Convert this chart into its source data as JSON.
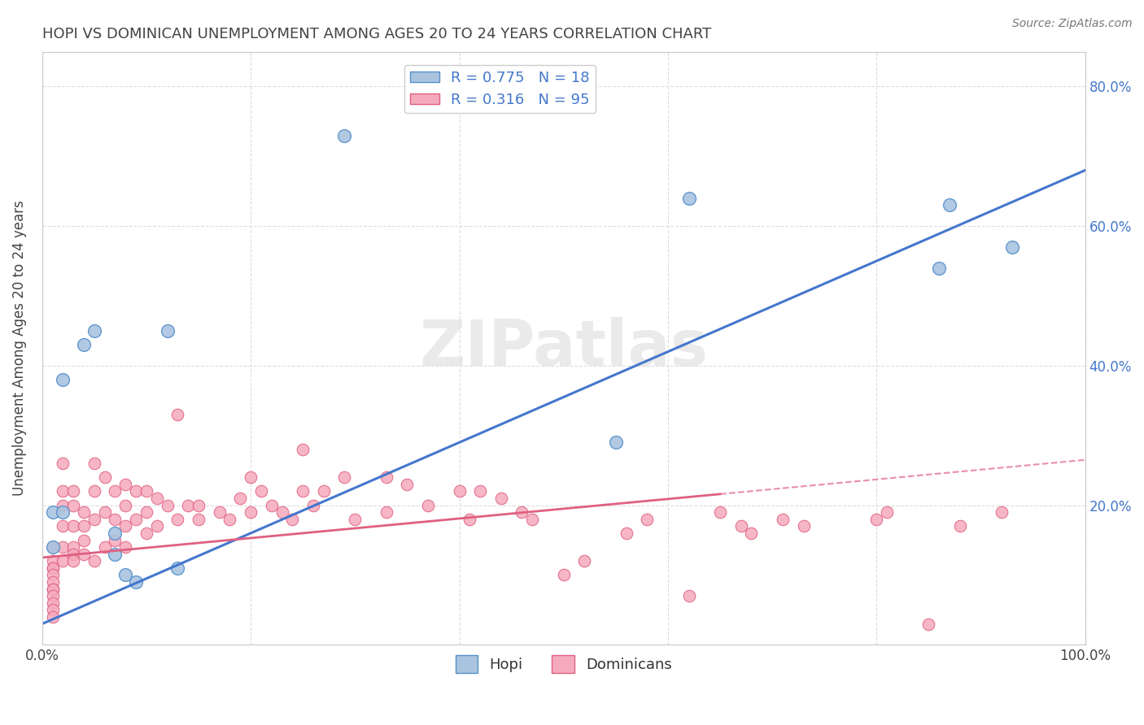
{
  "title": "HOPI VS DOMINICAN UNEMPLOYMENT AMONG AGES 20 TO 24 YEARS CORRELATION CHART",
  "source": "Source: ZipAtlas.com",
  "ylabel": "Unemployment Among Ages 20 to 24 years",
  "xlim": [
    0,
    1.0
  ],
  "ylim": [
    0,
    0.85
  ],
  "xticks": [
    0.0,
    0.2,
    0.4,
    0.6,
    0.8,
    1.0
  ],
  "xticklabels": [
    "0.0%",
    "",
    "",
    "",
    "",
    "100.0%"
  ],
  "yticks": [
    0.0,
    0.2,
    0.4,
    0.6,
    0.8
  ],
  "yticklabels": [
    "",
    "",
    "",
    "",
    ""
  ],
  "right_yticks": [
    0.0,
    0.2,
    0.4,
    0.6,
    0.8
  ],
  "right_yticklabels": [
    "",
    "20.0%",
    "40.0%",
    "60.0%",
    "80.0%"
  ],
  "hopi_color": "#aac4e0",
  "dominican_color": "#f5aabb",
  "hopi_edge_color": "#5590cc",
  "dominican_edge_color": "#e06080",
  "hopi_line_color": "#4477cc",
  "dominican_line_color": "#e06080",
  "dominican_line_solid_end": 0.65,
  "hopi_R": 0.775,
  "hopi_N": 18,
  "dominican_R": 0.316,
  "dominican_N": 95,
  "legend_label_hopi": "Hopi",
  "legend_label_dominican": "Dominicans",
  "watermark": "ZIPatlas",
  "background_color": "#ffffff",
  "grid_color": "#dddddd",
  "hopi_line_x0": 0.0,
  "hopi_line_y0": 0.03,
  "hopi_line_x1": 1.0,
  "hopi_line_y1": 0.68,
  "dominican_line_x0": 0.0,
  "dominican_line_y0": 0.125,
  "dominican_line_x1": 1.0,
  "dominican_line_y1": 0.265,
  "hopi_points_x": [
    0.01,
    0.01,
    0.02,
    0.04,
    0.05,
    0.07,
    0.07,
    0.08,
    0.09,
    0.12,
    0.13,
    0.29,
    0.55,
    0.62,
    0.86,
    0.87,
    0.93,
    0.02
  ],
  "hopi_points_y": [
    0.19,
    0.14,
    0.19,
    0.43,
    0.45,
    0.16,
    0.13,
    0.1,
    0.09,
    0.45,
    0.11,
    0.73,
    0.29,
    0.64,
    0.54,
    0.63,
    0.57,
    0.38
  ],
  "dominican_points_x": [
    0.01,
    0.01,
    0.01,
    0.01,
    0.01,
    0.01,
    0.01,
    0.01,
    0.01,
    0.01,
    0.01,
    0.01,
    0.02,
    0.02,
    0.02,
    0.02,
    0.02,
    0.02,
    0.03,
    0.03,
    0.03,
    0.03,
    0.03,
    0.03,
    0.04,
    0.04,
    0.04,
    0.04,
    0.05,
    0.05,
    0.05,
    0.05,
    0.06,
    0.06,
    0.06,
    0.07,
    0.07,
    0.07,
    0.08,
    0.08,
    0.08,
    0.08,
    0.09,
    0.09,
    0.1,
    0.1,
    0.1,
    0.11,
    0.11,
    0.12,
    0.13,
    0.13,
    0.14,
    0.15,
    0.15,
    0.17,
    0.18,
    0.19,
    0.2,
    0.2,
    0.21,
    0.22,
    0.23,
    0.24,
    0.25,
    0.25,
    0.26,
    0.27,
    0.29,
    0.3,
    0.33,
    0.33,
    0.35,
    0.37,
    0.4,
    0.41,
    0.42,
    0.44,
    0.46,
    0.47,
    0.5,
    0.52,
    0.56,
    0.58,
    0.62,
    0.65,
    0.67,
    0.68,
    0.71,
    0.73,
    0.8,
    0.81,
    0.85,
    0.88,
    0.92
  ],
  "dominican_points_y": [
    0.14,
    0.12,
    0.11,
    0.11,
    0.1,
    0.09,
    0.08,
    0.08,
    0.07,
    0.06,
    0.05,
    0.04,
    0.26,
    0.22,
    0.2,
    0.17,
    0.14,
    0.12,
    0.22,
    0.2,
    0.17,
    0.14,
    0.13,
    0.12,
    0.19,
    0.17,
    0.15,
    0.13,
    0.26,
    0.22,
    0.18,
    0.12,
    0.24,
    0.19,
    0.14,
    0.22,
    0.18,
    0.15,
    0.23,
    0.2,
    0.17,
    0.14,
    0.22,
    0.18,
    0.22,
    0.19,
    0.16,
    0.21,
    0.17,
    0.2,
    0.33,
    0.18,
    0.2,
    0.2,
    0.18,
    0.19,
    0.18,
    0.21,
    0.24,
    0.19,
    0.22,
    0.2,
    0.19,
    0.18,
    0.28,
    0.22,
    0.2,
    0.22,
    0.24,
    0.18,
    0.24,
    0.19,
    0.23,
    0.2,
    0.22,
    0.18,
    0.22,
    0.21,
    0.19,
    0.18,
    0.1,
    0.12,
    0.16,
    0.18,
    0.07,
    0.19,
    0.17,
    0.16,
    0.18,
    0.17,
    0.18,
    0.19,
    0.03,
    0.17,
    0.19
  ]
}
